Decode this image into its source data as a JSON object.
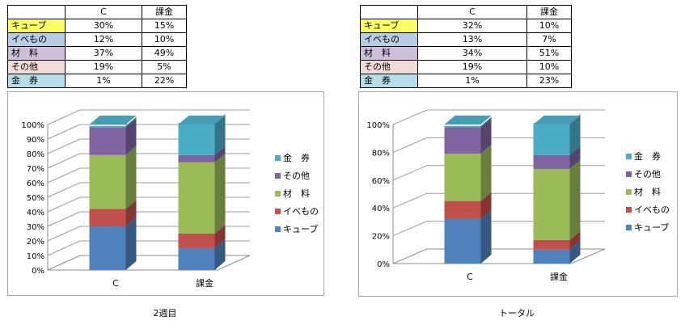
{
  "row_colors": [
    "#ffff66",
    "#b8cce4",
    "#ccc0da",
    "#f2dcdb",
    "#b7dee8"
  ],
  "tables": [
    {
      "headers": [
        "",
        "C",
        "課金"
      ],
      "rows": [
        {
          "label": "キューブ",
          "c": "30%",
          "fee": "15%"
        },
        {
          "label": "イベもの",
          "c": "12%",
          "fee": "10%"
        },
        {
          "label": "材　料",
          "c": "37%",
          "fee": "49%"
        },
        {
          "label": "その他",
          "c": "19%",
          "fee": "5%"
        },
        {
          "label": "金　券",
          "c": "1%",
          "fee": "22%"
        }
      ]
    },
    {
      "headers": [
        "",
        "C",
        "課金"
      ],
      "rows": [
        {
          "label": "キューブ",
          "c": "32%",
          "fee": "10%"
        },
        {
          "label": "イベもの",
          "c": "13%",
          "fee": "7%"
        },
        {
          "label": "材　料",
          "c": "34%",
          "fee": "51%"
        },
        {
          "label": "その他",
          "c": "19%",
          "fee": "10%"
        },
        {
          "label": "金　券",
          "c": "1%",
          "fee": "23%"
        }
      ]
    }
  ],
  "chart_data": [
    {
      "type": "bar",
      "stacked": true,
      "percent_stacked": true,
      "three_d": true,
      "title": "",
      "categories": [
        "C",
        "課金"
      ],
      "series": [
        {
          "name": "キューブ",
          "values": [
            30,
            15
          ],
          "color": "#4f81bd"
        },
        {
          "name": "イベもの",
          "values": [
            12,
            10
          ],
          "color": "#c0504d"
        },
        {
          "name": "材　料",
          "values": [
            37,
            49
          ],
          "color": "#9bbb59"
        },
        {
          "name": "その他",
          "values": [
            19,
            5
          ],
          "color": "#8064a2"
        },
        {
          "name": "金　券",
          "values": [
            1,
            22
          ],
          "color": "#4bacc6"
        }
      ],
      "ylim": [
        0,
        100
      ],
      "y_ticks": [
        "0%",
        "10%",
        "20%",
        "30%",
        "40%",
        "50%",
        "60%",
        "70%",
        "80%",
        "90%",
        "100%"
      ],
      "grid": true,
      "legend_placement": "right",
      "caption": "2週目"
    },
    {
      "type": "bar",
      "stacked": true,
      "percent_stacked": true,
      "three_d": true,
      "title": "",
      "categories": [
        "C",
        "課金"
      ],
      "series": [
        {
          "name": "キューブ",
          "values": [
            32,
            10
          ],
          "color": "#4f81bd"
        },
        {
          "name": "イベもの",
          "values": [
            13,
            7
          ],
          "color": "#c0504d"
        },
        {
          "name": "材　料",
          "values": [
            34,
            51
          ],
          "color": "#9bbb59"
        },
        {
          "name": "その他",
          "values": [
            19,
            10
          ],
          "color": "#8064a2"
        },
        {
          "name": "金　券",
          "values": [
            1,
            23
          ],
          "color": "#4bacc6"
        }
      ],
      "ylim": [
        0,
        100
      ],
      "y_ticks": [
        "0%",
        "20%",
        "40%",
        "60%",
        "80%",
        "100%"
      ],
      "grid": true,
      "legend_placement": "right",
      "caption": "トータル"
    }
  ]
}
